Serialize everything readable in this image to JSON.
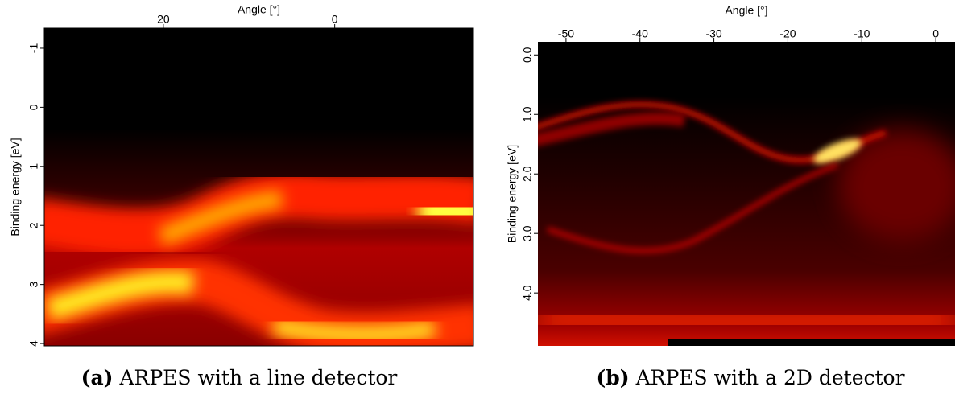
{
  "panels": [
    {
      "x_axis": {
        "label": "Angle [°]",
        "range": [
          33.9,
          -16.2
        ],
        "ticks": [
          20,
          0
        ]
      },
      "y_axis": {
        "label": "Binding energy [eV]",
        "range": [
          -1.34,
          4.04
        ],
        "ticks": [
          -1,
          0,
          1,
          2,
          3,
          4
        ]
      },
      "caption": {
        "label": "(a)",
        "text": "ARPES with a line detector"
      }
    },
    {
      "x_axis": {
        "label": "Angle [°]",
        "range": [
          -53.8,
          2.6
        ],
        "ticks": [
          -50,
          -40,
          -30,
          -20,
          -10,
          0
        ]
      },
      "y_axis": {
        "label": "Binding energy [eV]",
        "range": [
          -0.22,
          4.89
        ],
        "ticks": [
          {
            "value": 0,
            "label": "0.0"
          },
          {
            "value": 1,
            "label": "1.0"
          },
          {
            "value": 2,
            "label": "2.0"
          },
          {
            "value": 3,
            "label": "3.0"
          },
          {
            "value": 4,
            "label": "4.0"
          }
        ]
      },
      "caption": {
        "label": "(b)",
        "text": "ARPES with a 2D detector"
      }
    }
  ]
}
